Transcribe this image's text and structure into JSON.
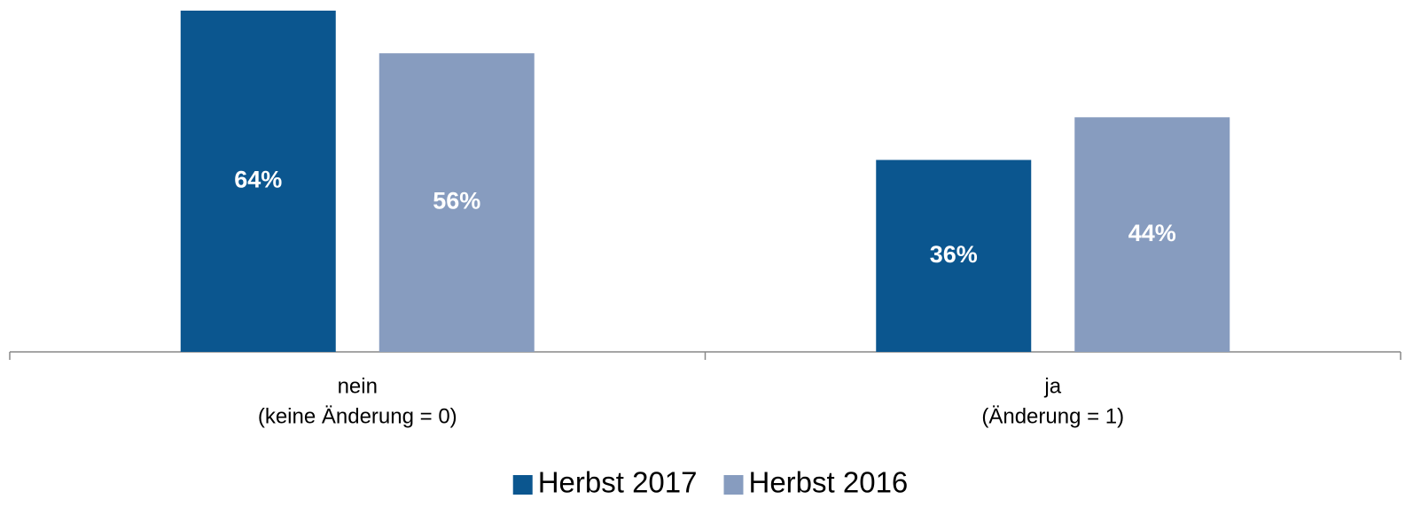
{
  "chart_data": {
    "type": "bar",
    "categories": [
      [
        "nein",
        "(keine Änderung = 0)"
      ],
      [
        "ja",
        "(Änderung = 1)"
      ]
    ],
    "series": [
      {
        "name": "Herbst 2017",
        "color": "#0b568f",
        "values": [
          64,
          36
        ],
        "value_labels": [
          "64%",
          "36%"
        ]
      },
      {
        "name": "Herbst 2016",
        "color": "#879cbf",
        "values": [
          56,
          44
        ],
        "value_labels": [
          "56%",
          "44%"
        ]
      }
    ],
    "ylim": [
      0,
      64
    ],
    "legend": "bottom"
  }
}
